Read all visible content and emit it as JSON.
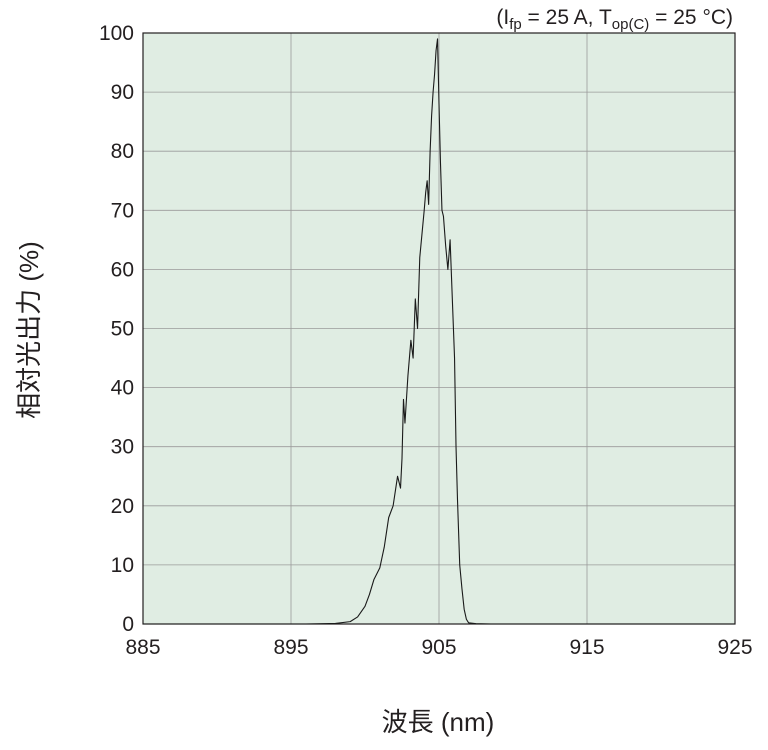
{
  "chart_data": {
    "type": "line",
    "title": "",
    "conditions": {
      "open": "(I",
      "i_sub": "fp",
      "i_val": " = 25 A, T",
      "t_sub": "op(C)",
      "t_val": " = 25 °C)"
    },
    "xlabel": "波長 (nm)",
    "ylabel": "相対光出力 (%)",
    "xlim": [
      885,
      925
    ],
    "ylim": [
      0,
      100
    ],
    "xticks": [
      885,
      895,
      905,
      915,
      925
    ],
    "yticks": [
      0,
      10,
      20,
      30,
      40,
      50,
      60,
      70,
      80,
      90,
      100
    ],
    "grid": true,
    "background_color": "#e0ede3",
    "grid_color": "#9a9a9a",
    "line_color": "#1a1a1a",
    "series": [
      {
        "x": [
          885,
          896,
          898,
          899,
          899.5,
          900,
          900.3,
          900.6,
          901,
          901.3,
          901.6,
          901.9,
          902.2,
          902.4,
          902.5,
          902.6,
          902.7,
          902.9,
          903.1,
          903.25,
          903.4,
          903.55,
          903.7,
          903.85,
          904,
          904.1,
          904.2,
          904.3,
          904.4,
          904.5,
          904.6,
          904.7,
          904.8,
          904.9,
          905,
          905.1,
          905.2,
          905.3,
          905.45,
          905.6,
          905.75,
          905.9,
          906.05,
          906.15,
          906.25,
          906.4,
          906.55,
          906.7,
          906.85,
          907,
          907.5,
          908.5,
          925
        ],
        "y": [
          0,
          0,
          0.1,
          0.4,
          1.2,
          3,
          5,
          7.5,
          9.5,
          13,
          18,
          20,
          25,
          23,
          28,
          38,
          34,
          42,
          48,
          45,
          55,
          50,
          62,
          66,
          70,
          73,
          75,
          71,
          80,
          86,
          90,
          93,
          97,
          99,
          88,
          78,
          70,
          69,
          64,
          60,
          65,
          55,
          45,
          30,
          21,
          10,
          6,
          2.5,
          0.8,
          0.2,
          0.05,
          0,
          0
        ]
      }
    ]
  }
}
